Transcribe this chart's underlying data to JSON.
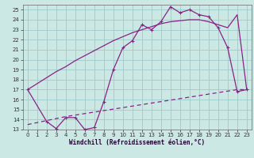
{
  "bg_color": "#cce8e4",
  "grid_color": "#99cccc",
  "line_color": "#882288",
  "xlim": [
    -0.5,
    23.5
  ],
  "ylim": [
    13,
    25.5
  ],
  "xticks": [
    0,
    1,
    2,
    3,
    4,
    5,
    6,
    7,
    8,
    9,
    10,
    11,
    12,
    13,
    14,
    15,
    16,
    17,
    18,
    19,
    20,
    21,
    22,
    23
  ],
  "yticks": [
    13,
    14,
    15,
    16,
    17,
    18,
    19,
    20,
    21,
    22,
    23,
    24,
    25
  ],
  "xlabel": "Windchill (Refroidissement éolien,°C)",
  "line1_x": [
    0,
    1,
    2,
    3,
    4,
    5,
    6,
    7,
    8,
    9,
    10,
    11,
    12,
    13,
    14,
    15,
    16,
    17,
    18,
    19,
    20,
    21,
    22,
    23
  ],
  "line1_y": [
    17.0,
    17.6,
    18.2,
    18.8,
    19.3,
    19.9,
    20.4,
    20.9,
    21.4,
    21.9,
    22.3,
    22.7,
    23.0,
    23.3,
    23.6,
    23.8,
    23.9,
    24.0,
    24.0,
    23.8,
    23.5,
    23.2,
    24.5,
    17.0
  ],
  "line2_x": [
    0,
    2,
    3,
    4,
    5,
    6,
    7,
    8,
    9,
    10,
    11,
    12,
    13,
    14,
    15,
    16,
    17,
    18,
    19,
    20,
    21,
    22,
    23
  ],
  "line2_y": [
    17.0,
    13.8,
    13.1,
    14.2,
    14.2,
    13.0,
    13.2,
    15.8,
    19.0,
    21.2,
    21.9,
    23.5,
    23.0,
    23.8,
    25.3,
    24.7,
    25.0,
    24.5,
    24.3,
    23.2,
    21.2,
    16.8,
    17.0
  ],
  "line3_x": [
    0,
    2,
    4,
    6,
    8,
    10,
    12,
    14,
    16,
    18,
    20,
    22,
    23
  ],
  "line3_y": [
    13.5,
    13.9,
    14.3,
    14.6,
    14.9,
    15.2,
    15.5,
    15.8,
    16.1,
    16.4,
    16.7,
    17.0,
    17.0
  ]
}
